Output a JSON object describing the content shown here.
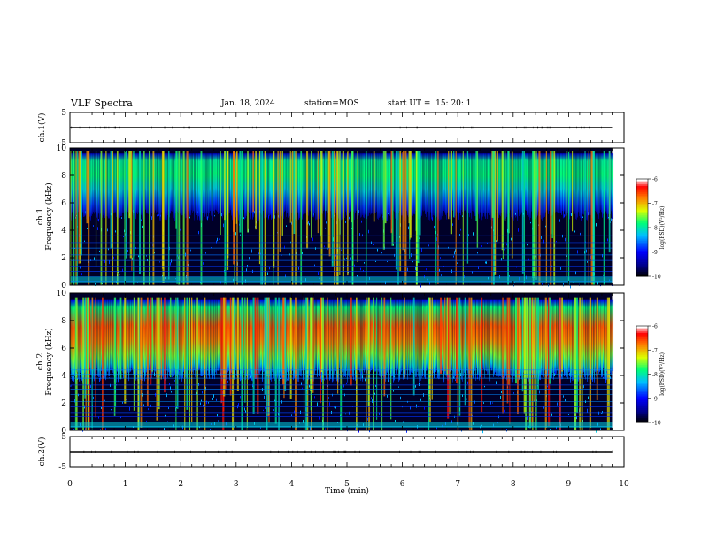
{
  "header": {
    "title": "VLF Spectra",
    "date": "Jan. 18, 2024",
    "station": "station=MOS",
    "start": "start UT =  15: 20: 1"
  },
  "chart_data": [
    {
      "type": "line",
      "panel": "ch1-waveform",
      "ylabel": "ch.1(V)",
      "ylim": [
        -5,
        5
      ],
      "yticks": [
        "5",
        "-5"
      ],
      "series": [
        {
          "x": [
            0,
            9.8
          ],
          "y": [
            0,
            0
          ]
        }
      ]
    },
    {
      "type": "heatmap",
      "panel": "ch1-spectrogram",
      "ylabel": "ch.1 Frequency (kHz)",
      "ylim": [
        0,
        10
      ],
      "yticks": [
        "0",
        "2",
        "4",
        "6",
        "8",
        "10"
      ],
      "xlim": [
        0,
        10
      ],
      "data_end_min": 9.8,
      "band_khz": [
        5.5,
        9.6
      ],
      "colorbar": {
        "label": "log(PSD)(V²/Hz)",
        "ticks": [
          "-6",
          "-7",
          "-8",
          "-9",
          "-10"
        ],
        "range": [
          -10,
          -6
        ]
      }
    },
    {
      "type": "heatmap",
      "panel": "ch2-spectrogram",
      "ylabel": "ch.2 Frequency (kHz)",
      "ylim": [
        0,
        10
      ],
      "yticks": [
        "0",
        "2",
        "4",
        "6",
        "8",
        "10"
      ],
      "xlim": [
        0,
        10
      ],
      "data_end_min": 9.8,
      "band_khz": [
        4.5,
        9.5
      ],
      "colorbar": {
        "label": "log(PSD)(V²/Hz)",
        "ticks": [
          "-6",
          "-7",
          "-8",
          "-9",
          "-10"
        ],
        "range": [
          -10,
          -6
        ]
      }
    },
    {
      "type": "line",
      "panel": "ch2-waveform",
      "ylabel": "ch.2(V)",
      "ylim": [
        -5,
        5
      ],
      "yticks": [
        "5",
        "-5"
      ],
      "xlabel": "Time (min)",
      "xticks": [
        "0",
        "1",
        "2",
        "3",
        "4",
        "5",
        "6",
        "7",
        "8",
        "9",
        "10"
      ],
      "xlim": [
        0,
        10
      ],
      "series": [
        {
          "x": [
            0,
            9.8
          ],
          "y": [
            0,
            0
          ]
        }
      ]
    }
  ]
}
